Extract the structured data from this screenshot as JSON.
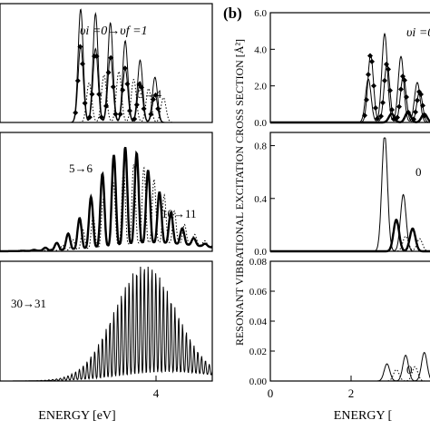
{
  "figure": {
    "panel_b_label": "(b)",
    "left_xlabel": "ENERGY [eV]",
    "right_xlabel": "ENERGY [",
    "right_ylabel": "RESONANT VIBRATIONAL EXCITATION CROSS SECTION [Å²]"
  },
  "chart_data": [
    {
      "id": "left-top",
      "type": "line",
      "panel": "left",
      "xlim": [
        0,
        5
      ],
      "x_ticks": [
        "4"
      ],
      "annotations": [
        "υi =0→υf =1",
        "3→4"
      ],
      "series": [
        {
          "style": "thin-solid",
          "peaks": [
            [
              1.9,
              1.0
            ],
            [
              2.25,
              0.96
            ],
            [
              2.6,
              0.88
            ],
            [
              2.95,
              0.72
            ],
            [
              3.3,
              0.55
            ],
            [
              3.65,
              0.4
            ]
          ]
        },
        {
          "style": "diamond-markers",
          "peaks": [
            [
              1.9,
              0.68
            ],
            [
              2.25,
              0.65
            ],
            [
              2.6,
              0.58
            ],
            [
              2.95,
              0.48
            ],
            [
              3.3,
              0.36
            ],
            [
              3.65,
              0.25
            ]
          ]
        },
        {
          "style": "dotted",
          "peaks": [
            [
              2.1,
              0.35
            ],
            [
              2.45,
              0.42
            ],
            [
              2.8,
              0.45
            ],
            [
              3.15,
              0.38
            ],
            [
              3.5,
              0.3
            ],
            [
              3.85,
              0.22
            ]
          ]
        }
      ]
    },
    {
      "id": "left-mid",
      "type": "line",
      "panel": "left",
      "xlim": [
        0,
        5
      ],
      "x_ticks": [
        "4"
      ],
      "annotations": [
        "5→6",
        "10→11"
      ],
      "series": [
        {
          "style": "bold-solid",
          "oscillation_period": 0.27,
          "peak_x": 2.95,
          "peak_y": 0.85
        },
        {
          "style": "dotted",
          "oscillation_period": 0.24,
          "peak_x": 3.15,
          "peak_y": 0.7
        }
      ]
    },
    {
      "id": "left-bottom",
      "type": "line",
      "panel": "left",
      "xlim": [
        0,
        5
      ],
      "x_ticks": [
        "4"
      ],
      "annotations": [
        "30→31"
      ],
      "series": [
        {
          "style": "thin-solid",
          "oscillation_period": 0.09,
          "peak_x": 3.4,
          "peak_y": 0.95
        }
      ]
    },
    {
      "id": "right-top",
      "type": "line",
      "panel": "right",
      "xlim": [
        0,
        3.5
      ],
      "ylim": [
        0,
        6.0
      ],
      "y_ticks": [
        "0.0",
        "2.0",
        "4.0",
        "6.0"
      ],
      "annotations": [
        "υi =0"
      ],
      "series": [
        {
          "style": "thin-solid",
          "peaks": [
            [
              2.1,
              2.5
            ],
            [
              2.45,
              5.1
            ],
            [
              2.8,
              3.8
            ],
            [
              3.15,
              2.3
            ]
          ]
        },
        {
          "style": "diamond-markers",
          "peaks": [
            [
              2.15,
              3.9
            ],
            [
              2.5,
              3.4
            ],
            [
              2.85,
              2.7
            ],
            [
              3.2,
              1.8
            ]
          ]
        },
        {
          "style": "bold-solid",
          "peaks": [
            [
              2.6,
              0.5
            ],
            [
              2.95,
              0.6
            ],
            [
              3.3,
              0.5
            ]
          ]
        }
      ]
    },
    {
      "id": "right-mid",
      "type": "line",
      "panel": "right",
      "xlim": [
        0,
        3.5
      ],
      "ylim": [
        0,
        0.9
      ],
      "y_ticks": [
        "0.0",
        "0.4",
        "0.8"
      ],
      "annotations": [
        "0"
      ],
      "series": [
        {
          "style": "thin-solid",
          "peaks": [
            [
              2.45,
              0.93
            ],
            [
              2.85,
              0.45
            ]
          ]
        },
        {
          "style": "bold-solid",
          "peaks": [
            [
              2.7,
              0.25
            ],
            [
              3.05,
              0.18
            ]
          ]
        },
        {
          "style": "dotted",
          "peaks": [
            [
              2.9,
              0.12
            ],
            [
              3.2,
              0.1
            ]
          ]
        }
      ]
    },
    {
      "id": "right-bottom",
      "type": "line",
      "panel": "right",
      "xlim": [
        0,
        3.5
      ],
      "ylim": [
        0,
        0.08
      ],
      "y_ticks": [
        "0.00",
        "0.02",
        "0.04",
        "0.06",
        "0.08"
      ],
      "x_ticks": [
        "0",
        "2"
      ],
      "annotations": [
        "0"
      ],
      "series": [
        {
          "style": "thin-solid",
          "peaks": [
            [
              2.5,
              0.012
            ],
            [
              2.9,
              0.018
            ],
            [
              3.3,
              0.02
            ]
          ]
        },
        {
          "style": "dotted",
          "peaks": [
            [
              2.7,
              0.008
            ],
            [
              3.1,
              0.01
            ]
          ]
        }
      ]
    }
  ]
}
